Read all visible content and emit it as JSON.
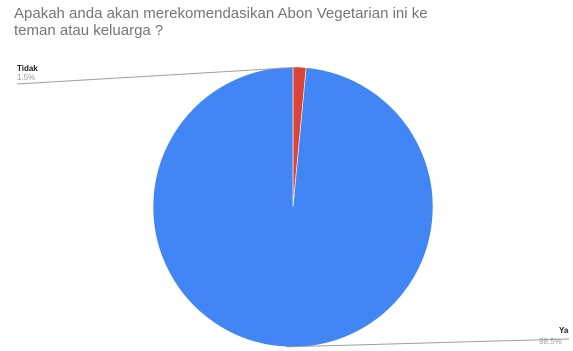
{
  "chart_data": {
    "type": "pie",
    "title": "Apakah anda akan merekomendasikan  Abon Vegetarian ini ke\nteman atau keluarga ?",
    "slices": [
      {
        "label": "Tidak",
        "percent_label": "1.5%",
        "value": 1.5,
        "color": "#db4437"
      },
      {
        "label": "Ya",
        "percent_label": "98.5%",
        "value": 98.5,
        "color": "#4285f4"
      }
    ],
    "start_angle_deg": 0,
    "direction": "clockwise",
    "legend": "none",
    "data_labels": "outside-with-leader-lines"
  }
}
